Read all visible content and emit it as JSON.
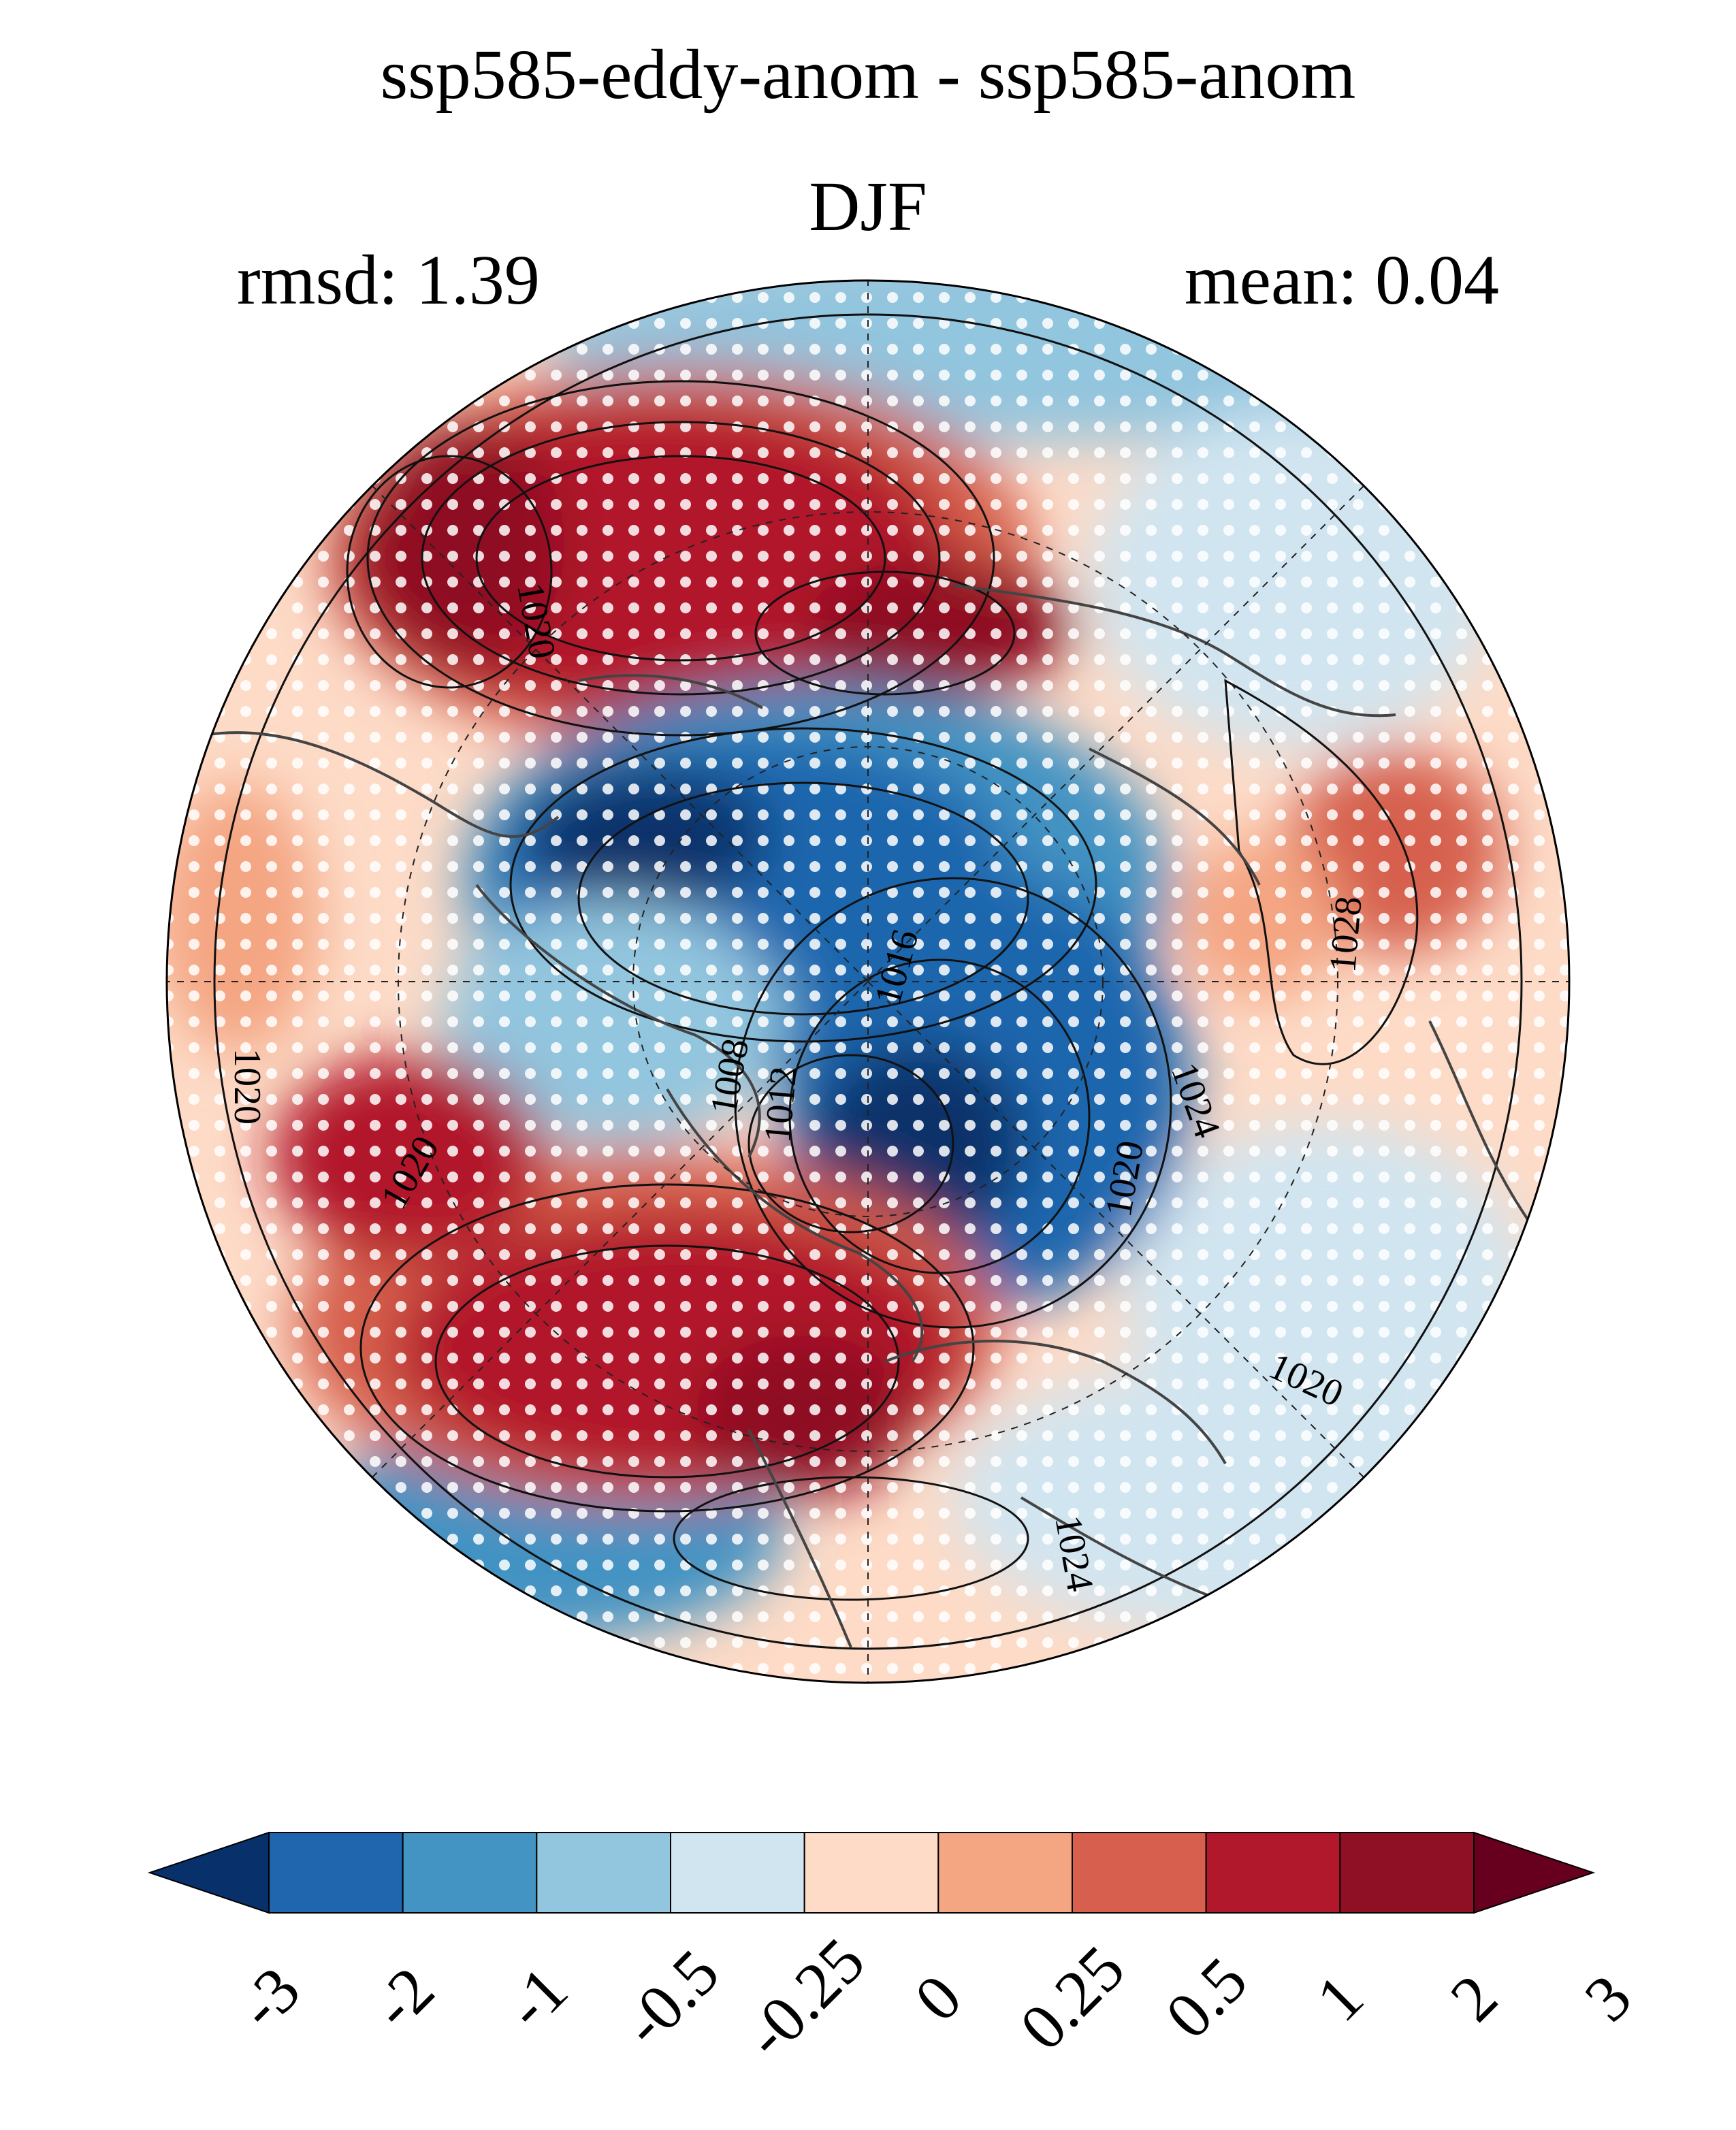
{
  "title": "ssp585-eddy-anom - ssp585-anom",
  "season": "DJF",
  "stats": {
    "rmsd": "rmsd: 1.39",
    "mean": "mean: 0.04"
  },
  "contour_labels": [
    "1020",
    "1020",
    "1016",
    "1008",
    "1012",
    "1020",
    "1024",
    "1020",
    "1028",
    "1020",
    "1024"
  ],
  "colorbar": {
    "ticks": [
      "-3",
      "-2",
      "-1",
      "-0.5",
      "-0.25",
      "0",
      "0.25",
      "0.5",
      "1",
      "2",
      "3"
    ],
    "colors": [
      "#08306b",
      "#1f66ae",
      "#4393c3",
      "#92c5de",
      "#d1e5f0",
      "#fddbc7",
      "#f4a582",
      "#d6604d",
      "#b2182b",
      "#8f0f24",
      "#67001f"
    ],
    "extend": "both"
  },
  "map": {
    "projection": "north-polar-stereographic",
    "stippling": "significance dots"
  }
}
